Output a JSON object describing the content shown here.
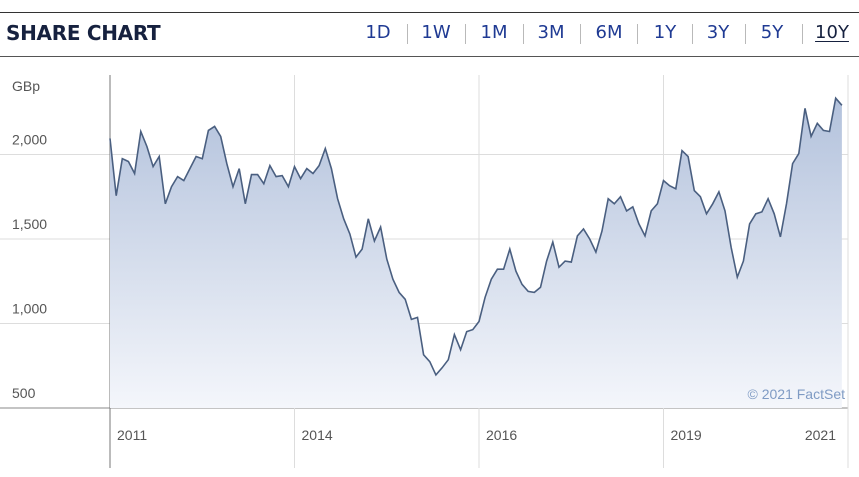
{
  "header": {
    "title": "SHARE CHART",
    "tabs": [
      "1D",
      "1W",
      "1M",
      "3M",
      "6M",
      "1Y",
      "3Y",
      "5Y",
      "10Y"
    ],
    "selected_index": 8
  },
  "chart_data": {
    "type": "area",
    "y_label": "GBp",
    "annotation": "© 2021 FactSet",
    "color": "#4a5f80",
    "grid": true,
    "values": [
      2095,
      1756,
      1975,
      1958,
      1887,
      2136,
      2047,
      1928,
      1988,
      1708,
      1809,
      1869,
      1845,
      1916,
      1988,
      1975,
      2142,
      2166,
      2107,
      1946,
      1809,
      1916,
      1708,
      1881,
      1881,
      1827,
      1934,
      1869,
      1875,
      1809,
      1928,
      1857,
      1916,
      1887,
      1934,
      2035,
      1916,
      1738,
      1619,
      1529,
      1393,
      1440,
      1619,
      1488,
      1571,
      1381,
      1262,
      1184,
      1143,
      1024,
      1036,
      815,
      774,
      696,
      738,
      786,
      934,
      845,
      952,
      964,
      1012,
      1155,
      1262,
      1321,
      1321,
      1440,
      1310,
      1232,
      1190,
      1184,
      1214,
      1369,
      1482,
      1333,
      1369,
      1363,
      1518,
      1559,
      1500,
      1422,
      1547,
      1738,
      1708,
      1750,
      1666,
      1690,
      1589,
      1518,
      1666,
      1708,
      1845,
      1815,
      1797,
      2023,
      1988,
      1786,
      1750,
      1649,
      1708,
      1779,
      1666,
      1452,
      1274,
      1369,
      1589,
      1649,
      1660,
      1738,
      1649,
      1512,
      1708,
      1946,
      2005,
      2273,
      2107,
      2184,
      2142,
      2136,
      2333,
      2291
    ],
    "xlim": [
      0,
      120
    ],
    "xticks": [
      {
        "value": 0,
        "label": "2011"
      },
      {
        "value": 30,
        "label": "2014"
      },
      {
        "value": 60,
        "label": "2016"
      },
      {
        "value": 90,
        "label": "2019"
      },
      {
        "value": 120,
        "label": "2021"
      }
    ],
    "ylim": [
      500,
      2470
    ],
    "yticks": [
      500,
      {
        "value": 1000,
        "label": "1,000"
      },
      {
        "value": 1500,
        "label": "1,500"
      },
      {
        "value": 2000,
        "label": "2,000"
      }
    ]
  }
}
